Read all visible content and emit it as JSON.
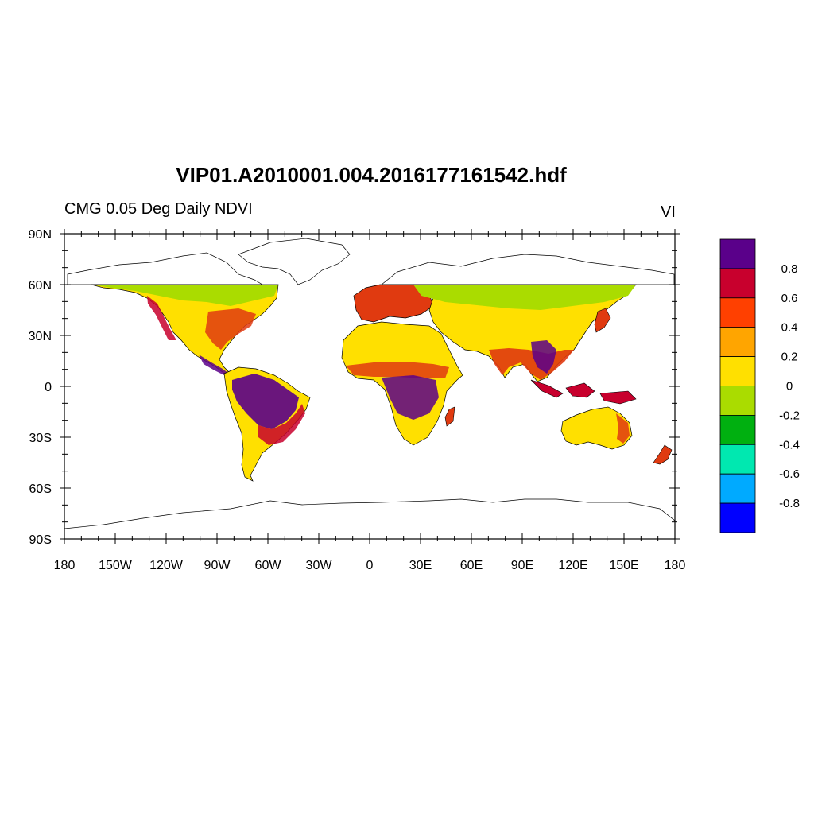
{
  "title": "VIP01.A2010001.004.2016177161542.hdf",
  "subtitle": "CMG 0.05 Deg Daily NDVI",
  "variable_label": "VI",
  "map": {
    "projection": "cylindrical equidistant",
    "lon_range": [
      -180,
      180
    ],
    "lat_range": [
      -90,
      90
    ],
    "x_tick_labels": [
      "180",
      "150W",
      "120W",
      "90W",
      "60W",
      "30W",
      "0",
      "30E",
      "60E",
      "90E",
      "120E",
      "150E",
      "180"
    ],
    "y_tick_labels": [
      "90N",
      "60N",
      "30N",
      "0",
      "30S",
      "60S",
      "90S"
    ]
  },
  "colorbar": {
    "levels": [
      "0.8",
      "0.6",
      "0.4",
      "0.2",
      "0",
      "-0.2",
      "-0.4",
      "-0.6",
      "-0.8"
    ],
    "colors_top_to_bottom": [
      "#5a008a",
      "#c8002d",
      "#ff4000",
      "#ffa500",
      "#ffe000",
      "#aadc00",
      "#00b010",
      "#00e8b0",
      "#00aaff",
      "#0000ff"
    ]
  },
  "colors": {
    "land_fill": "#ffe000",
    "high_veg": "#5a008a",
    "mid_veg": "#e03a10",
    "low_veg": "#aadc00",
    "coastline": "#000000"
  }
}
